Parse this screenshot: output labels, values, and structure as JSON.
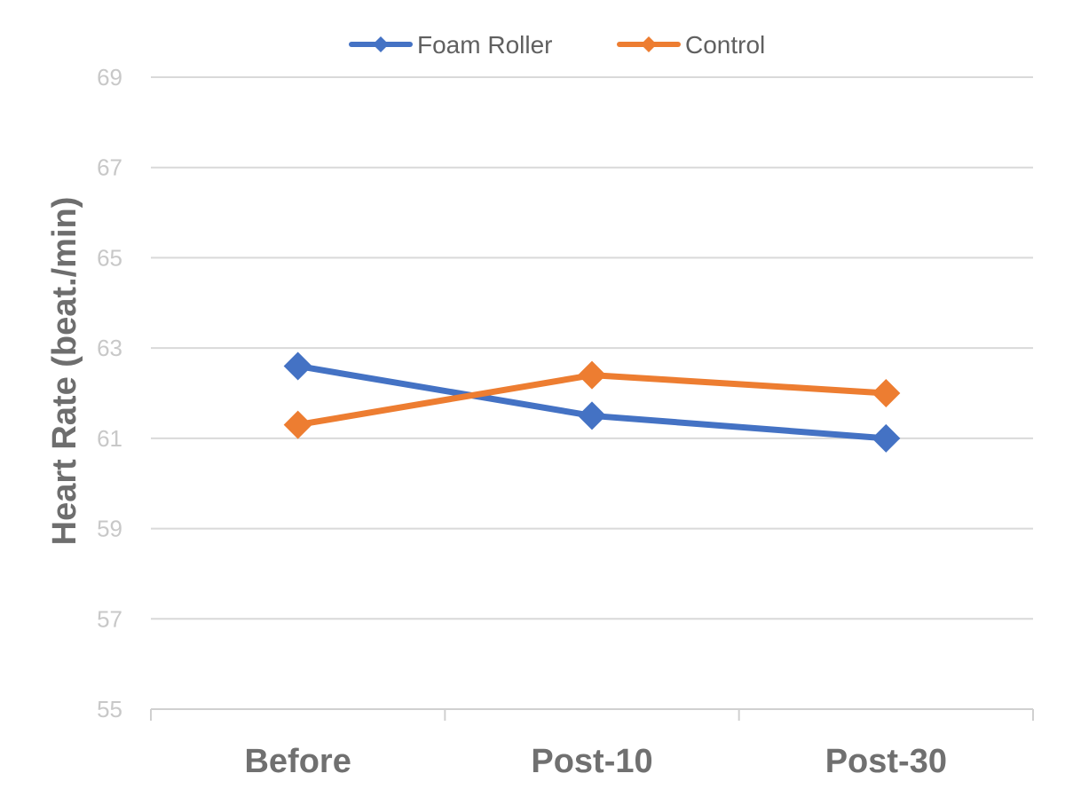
{
  "chart_data": {
    "type": "line",
    "title": "",
    "xlabel": "",
    "ylabel": "Heart Rate (beat./min)",
    "categories": [
      "Before",
      "Post-10",
      "Post-30"
    ],
    "ylim": [
      55,
      69
    ],
    "yticks": [
      55,
      57,
      59,
      61,
      63,
      65,
      67,
      69
    ],
    "grid": true,
    "legend_position": "top-center",
    "series": [
      {
        "name": "Foam Roller",
        "color": "#4472c4",
        "marker": "diamond",
        "values": [
          62.6,
          61.5,
          61.0
        ]
      },
      {
        "name": "Control",
        "color": "#ed7d31",
        "marker": "diamond",
        "values": [
          61.3,
          62.4,
          62.0
        ]
      }
    ]
  }
}
